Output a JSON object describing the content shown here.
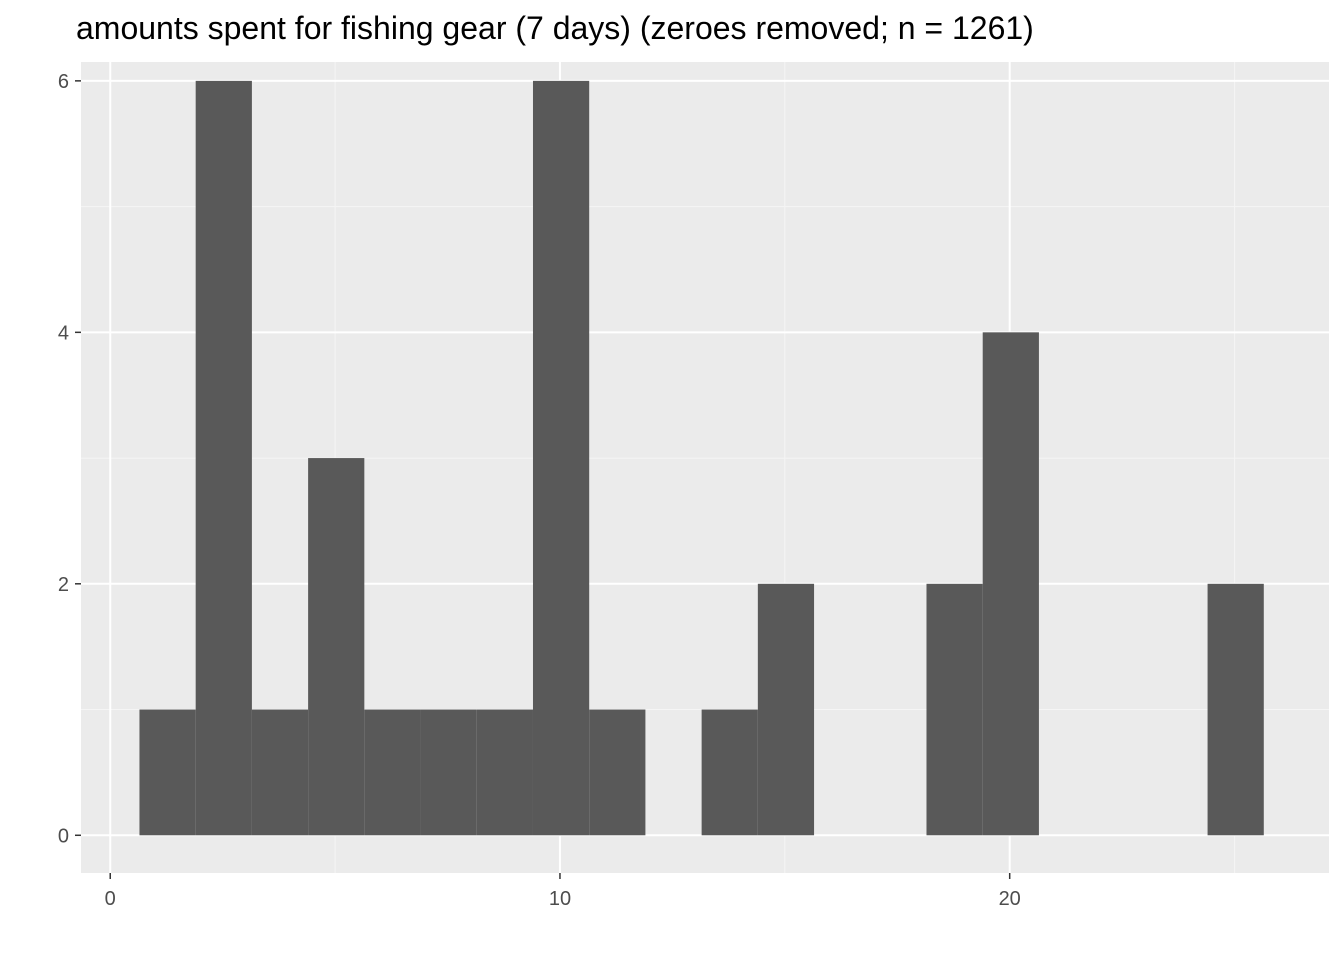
{
  "chart_data": {
    "type": "bar",
    "title": "amounts spent for fishing gear (7 days) (zeroes removed; n = 1261)",
    "xlabel": "",
    "ylabel": "",
    "xlim": [
      -0.65,
      27.1
    ],
    "ylim": [
      -0.3,
      6.15
    ],
    "x_ticks": [
      0,
      10,
      20
    ],
    "y_ticks": [
      0,
      2,
      4,
      6
    ],
    "x_minor_ticks": [
      5,
      15,
      25
    ],
    "y_minor_ticks": [
      1,
      3,
      5
    ],
    "bins": [
      {
        "x0": 0.65,
        "x1": 1.9,
        "count": 1
      },
      {
        "x0": 1.9,
        "x1": 3.15,
        "count": 6
      },
      {
        "x0": 3.15,
        "x1": 4.4,
        "count": 1
      },
      {
        "x0": 4.4,
        "x1": 5.65,
        "count": 3
      },
      {
        "x0": 5.65,
        "x1": 6.9,
        "count": 1
      },
      {
        "x0": 6.9,
        "x1": 8.15,
        "count": 1
      },
      {
        "x0": 8.15,
        "x1": 9.4,
        "count": 1
      },
      {
        "x0": 9.4,
        "x1": 10.65,
        "count": 6
      },
      {
        "x0": 10.65,
        "x1": 11.9,
        "count": 1
      },
      {
        "x0": 11.9,
        "x1": 13.15,
        "count": 0
      },
      {
        "x0": 13.15,
        "x1": 14.4,
        "count": 1
      },
      {
        "x0": 14.4,
        "x1": 15.65,
        "count": 2
      },
      {
        "x0": 15.65,
        "x1": 16.9,
        "count": 0
      },
      {
        "x0": 16.9,
        "x1": 18.15,
        "count": 0
      },
      {
        "x0": 18.15,
        "x1": 19.4,
        "count": 2
      },
      {
        "x0": 19.4,
        "x1": 20.65,
        "count": 4
      },
      {
        "x0": 20.65,
        "x1": 21.9,
        "count": 0
      },
      {
        "x0": 21.9,
        "x1": 23.15,
        "count": 0
      },
      {
        "x0": 23.15,
        "x1": 24.4,
        "count": 0
      },
      {
        "x0": 24.4,
        "x1": 25.65,
        "count": 2
      }
    ],
    "grid": true,
    "colors": {
      "panel_background": "#ebebeb",
      "grid_major": "#ffffff",
      "grid_minor": "#f5f5f5",
      "bar_fill": "#595959",
      "tick_mark": "#333333"
    }
  }
}
